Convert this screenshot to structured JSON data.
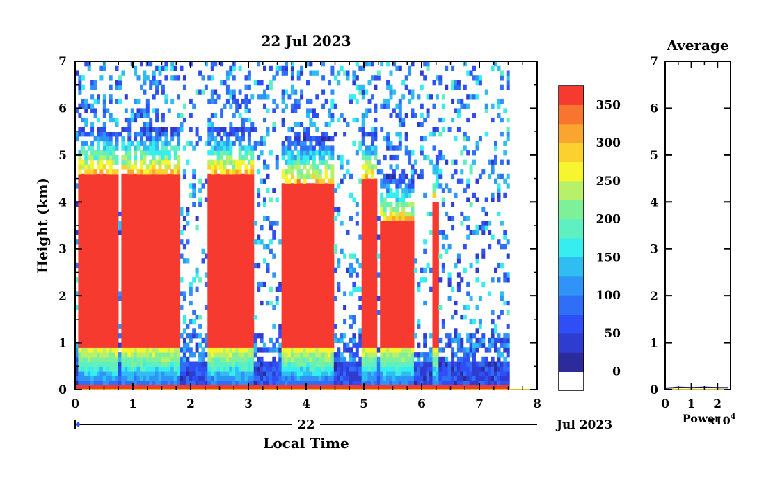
{
  "chart_data": [
    {
      "type": "heatmap",
      "title": "22 Jul 2023",
      "xlabel": "Local Time",
      "ylabel": "Height (km)",
      "xlim": [
        0,
        8
      ],
      "ylim": [
        0,
        7
      ],
      "x_ticks": [
        "0",
        "1",
        "2",
        "3",
        "4",
        "5",
        "6",
        "7",
        "8"
      ],
      "y_ticks": [
        "0",
        "1",
        "2",
        "3",
        "4",
        "5",
        "6",
        "7"
      ],
      "date_axis": {
        "day_label": "22",
        "month_label": "Jul 2023"
      },
      "data_extent_hours": [
        0,
        7.5
      ],
      "colorbar": {
        "ticks": [
          "0",
          "50",
          "100",
          "150",
          "200",
          "250",
          "300",
          "350"
        ],
        "range": [
          -25,
          375
        ],
        "levels": [
          {
            "from": -25,
            "to": 0,
            "color": "#ffffff"
          },
          {
            "from": 0,
            "to": 25,
            "color": "#2b2b9c"
          },
          {
            "from": 25,
            "to": 50,
            "color": "#2e3dd0"
          },
          {
            "from": 50,
            "to": 75,
            "color": "#2f4ef6"
          },
          {
            "from": 75,
            "to": 100,
            "color": "#2f6ff8"
          },
          {
            "from": 100,
            "to": 125,
            "color": "#2f93f7"
          },
          {
            "from": 125,
            "to": 150,
            "color": "#2fbdf2"
          },
          {
            "from": 150,
            "to": 175,
            "color": "#36edf0"
          },
          {
            "from": 175,
            "to": 200,
            "color": "#5ef0c0"
          },
          {
            "from": 200,
            "to": 225,
            "color": "#7ef09a"
          },
          {
            "from": 225,
            "to": 250,
            "color": "#b8f06a"
          },
          {
            "from": 250,
            "to": 275,
            "color": "#f7f52f"
          },
          {
            "from": 275,
            "to": 300,
            "color": "#fbd02f"
          },
          {
            "from": 300,
            "to": 325,
            "color": "#f9a52f"
          },
          {
            "from": 325,
            "to": 350,
            "color": "#f7752f"
          },
          {
            "from": 350,
            "to": 375,
            "color": "#f73a30"
          }
        ]
      },
      "cloud_segments": [
        {
          "start": 0.05,
          "end": 0.75,
          "top": 4.6
        },
        {
          "start": 0.78,
          "end": 1.8,
          "top": 4.6
        },
        {
          "start": 2.3,
          "end": 3.1,
          "top": 4.6
        },
        {
          "start": 3.6,
          "end": 4.5,
          "top": 4.4
        },
        {
          "start": 4.95,
          "end": 5.2,
          "top": 4.5
        },
        {
          "start": 5.3,
          "end": 5.85,
          "top": 3.6
        },
        {
          "start": 6.2,
          "end": 6.28,
          "top": 4.0
        }
      ]
    },
    {
      "type": "line",
      "title": "Average",
      "xlabel": "Power",
      "x_multiplier": "x10",
      "x_exponent": "4",
      "xlim": [
        0,
        2.5
      ],
      "ylim": [
        0,
        7
      ],
      "x_ticks": [
        "0",
        "1",
        "2"
      ],
      "y_ticks": [
        "0",
        "1",
        "2",
        "3",
        "4",
        "5",
        "6",
        "7"
      ],
      "series": [
        {
          "x": [
            0.02,
            0.3,
            0.5,
            1.0,
            1.5,
            2.0,
            2.4
          ],
          "y": [
            0.03,
            0.04,
            0.05,
            0.04,
            0.05,
            0.04,
            0.04
          ]
        }
      ]
    }
  ]
}
